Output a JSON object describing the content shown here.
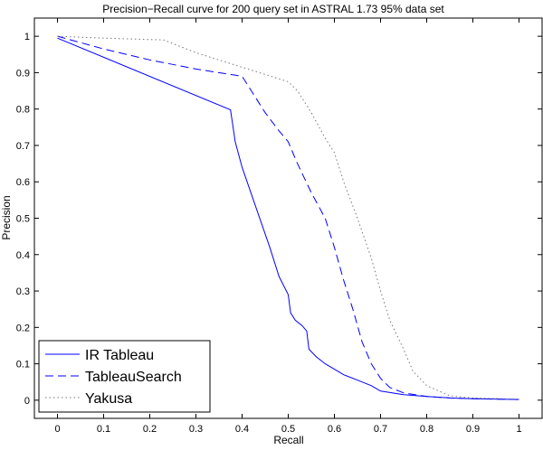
{
  "chart_data": {
    "type": "line",
    "title": "Precision−Recall curve for 200 query set in ASTRAL 1.73 95% data set",
    "xlabel": "Recall",
    "ylabel": "Precision",
    "xlim": [
      -0.05,
      1.05
    ],
    "ylim": [
      -0.05,
      1.05
    ],
    "xticks": [
      0,
      0.1,
      0.2,
      0.3,
      0.4,
      0.5,
      0.6,
      0.7,
      0.8,
      0.9,
      1
    ],
    "xtick_labels": [
      "0",
      "0.1",
      "0.2",
      "0.3",
      "0.4",
      "0.5",
      "0.6",
      "0.7",
      "0.8",
      "0.9",
      "1"
    ],
    "yticks": [
      0,
      0.1,
      0.2,
      0.3,
      0.4,
      0.5,
      0.6,
      0.7,
      0.8,
      0.9,
      1
    ],
    "ytick_labels": [
      "0",
      "0.1",
      "0.2",
      "0.3",
      "0.4",
      "0.5",
      "0.6",
      "0.7",
      "0.8",
      "0.9",
      "1"
    ],
    "grid": false,
    "legend_position": "bottom-left",
    "series": [
      {
        "name": "IR Tableau",
        "color": "#0000ff",
        "line_style": "solid",
        "x": [
          0,
          0.375,
          0.385,
          0.4,
          0.43,
          0.46,
          0.48,
          0.5,
          0.505,
          0.515,
          0.53,
          0.54,
          0.545,
          0.56,
          0.58,
          0.6,
          0.62,
          0.65,
          0.68,
          0.7,
          0.75,
          0.8,
          0.85,
          0.9,
          1
        ],
        "y": [
          0.995,
          0.798,
          0.71,
          0.64,
          0.53,
          0.42,
          0.34,
          0.29,
          0.24,
          0.22,
          0.205,
          0.19,
          0.14,
          0.12,
          0.1,
          0.085,
          0.07,
          0.055,
          0.04,
          0.025,
          0.015,
          0.01,
          0.006,
          0.004,
          0.002
        ]
      },
      {
        "name": "TableauSearch",
        "color": "#0000ff",
        "line_style": "dashed",
        "x": [
          0,
          0.1,
          0.2,
          0.3,
          0.4,
          0.42,
          0.45,
          0.48,
          0.5,
          0.52,
          0.55,
          0.58,
          0.6,
          0.62,
          0.64,
          0.66,
          0.68,
          0.7,
          0.72,
          0.75,
          0.8,
          0.85,
          0.9,
          1
        ],
        "y": [
          1,
          0.965,
          0.935,
          0.91,
          0.89,
          0.85,
          0.79,
          0.74,
          0.71,
          0.65,
          0.57,
          0.5,
          0.42,
          0.33,
          0.25,
          0.16,
          0.1,
          0.06,
          0.035,
          0.02,
          0.01,
          0.006,
          0.004,
          0.002
        ]
      },
      {
        "name": "Yakusa",
        "color": "#777777",
        "line_style": "dotted",
        "x": [
          0,
          0.1,
          0.23,
          0.3,
          0.4,
          0.45,
          0.5,
          0.52,
          0.55,
          0.58,
          0.6,
          0.62,
          0.65,
          0.68,
          0.7,
          0.72,
          0.75,
          0.77,
          0.8,
          0.85,
          0.9,
          1
        ],
        "y": [
          1,
          0.995,
          0.99,
          0.955,
          0.915,
          0.895,
          0.875,
          0.85,
          0.79,
          0.72,
          0.68,
          0.6,
          0.5,
          0.39,
          0.3,
          0.22,
          0.14,
          0.08,
          0.04,
          0.012,
          0.006,
          0.003
        ]
      }
    ]
  }
}
